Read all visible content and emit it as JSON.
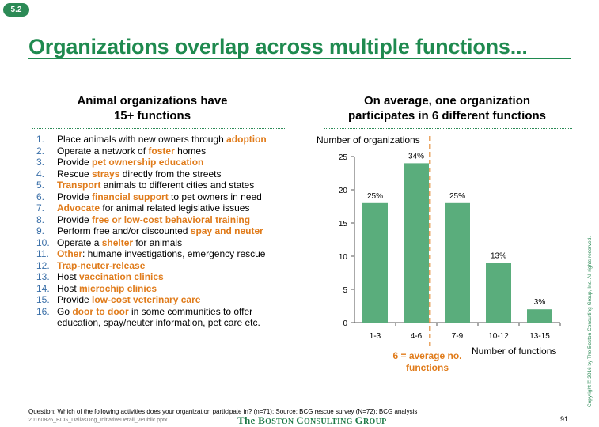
{
  "tracker": "5.2",
  "title": "Organizations overlap across multiple functions...",
  "left": {
    "heading_line1": "Animal organizations have",
    "heading_line2": "15+ functions",
    "items": [
      {
        "num": "1.",
        "parts": [
          {
            "t": "Place animals with new owners through "
          },
          {
            "t": "adoption",
            "hl": true
          }
        ]
      },
      {
        "num": "2.",
        "parts": [
          {
            "t": "Operate a network of "
          },
          {
            "t": "foster",
            "hl": true
          },
          {
            "t": " homes"
          }
        ]
      },
      {
        "num": "3.",
        "parts": [
          {
            "t": "Provide "
          },
          {
            "t": "pet ownership education",
            "hl": true
          }
        ]
      },
      {
        "num": "4.",
        "parts": [
          {
            "t": "Rescue "
          },
          {
            "t": "strays",
            "hl": true
          },
          {
            "t": " directly from the streets"
          }
        ]
      },
      {
        "num": "5.",
        "parts": [
          {
            "t": "Transport",
            "hl": true
          },
          {
            "t": " animals to different cities and states"
          }
        ]
      },
      {
        "num": "6.",
        "parts": [
          {
            "t": "Provide "
          },
          {
            "t": "financial support",
            "hl": true
          },
          {
            "t": " to pet owners in need"
          }
        ]
      },
      {
        "num": "7.",
        "parts": [
          {
            "t": "Advocate",
            "hl": true
          },
          {
            "t": " for animal related legislative issues"
          }
        ]
      },
      {
        "num": "8.",
        "parts": [
          {
            "t": "Provide "
          },
          {
            "t": "free or low-cost behavioral training",
            "hl": true
          }
        ]
      },
      {
        "num": "9.",
        "parts": [
          {
            "t": "Perform free and/or discounted "
          },
          {
            "t": "spay and neuter",
            "hl": true
          }
        ]
      },
      {
        "num": "10.",
        "parts": [
          {
            "t": "Operate a "
          },
          {
            "t": "shelter",
            "hl": true
          },
          {
            "t": " for animals"
          }
        ]
      },
      {
        "num": "11.",
        "parts": [
          {
            "t": "Other",
            "hl": true
          },
          {
            "t": ": humane investigations, emergency rescue"
          }
        ]
      },
      {
        "num": "12.",
        "parts": [
          {
            "t": "Trap-neuter-release",
            "hl": true
          }
        ]
      },
      {
        "num": "13.",
        "parts": [
          {
            "t": "Host "
          },
          {
            "t": "vaccination clinics",
            "hl": true
          }
        ]
      },
      {
        "num": "14.",
        "parts": [
          {
            "t": "Host "
          },
          {
            "t": "microchip clinics",
            "hl": true
          }
        ]
      },
      {
        "num": "15.",
        "parts": [
          {
            "t": "Provide "
          },
          {
            "t": "low-cost veterinary care",
            "hl": true
          }
        ]
      },
      {
        "num": "16.",
        "parts": [
          {
            "t": "Go "
          },
          {
            "t": "door to door",
            "hl": true
          },
          {
            "t": " in some communities to offer education, spay/neuter information, pet care etc."
          }
        ]
      }
    ]
  },
  "right": {
    "heading_line1": "On average, one organization",
    "heading_line2": "participates in 6 different functions"
  },
  "chart_data": {
    "type": "bar",
    "categories": [
      "1-3",
      "4-6",
      "7-9",
      "10-12",
      "13-15"
    ],
    "values": [
      18,
      24,
      18,
      9,
      2
    ],
    "data_labels": [
      "25%",
      "34%",
      "25%",
      "13%",
      "3%"
    ],
    "ylabel": "Number of organizations",
    "xlabel": "Number of functions",
    "ylim": [
      0,
      25
    ],
    "yticks": [
      0,
      5,
      10,
      15,
      20,
      25
    ],
    "grid": false,
    "bar_color": "#5aad7c",
    "annotation": {
      "x_value": 6,
      "line_color": "#e07b1a",
      "label_line1": "6 = average no.",
      "label_line2": "functions"
    }
  },
  "footer": {
    "footnote": "Question: Which of the following activities does your organization participate in? (n=71); Source: BCG rescue survey (N=72); BCG analysis",
    "filename": "20160826_BCG_DallasDog_InitiativeDetail_vPublic.pptx",
    "logo_the": "The ",
    "logo_b": "B",
    "logo_oston": "OSTON ",
    "logo_c": "C",
    "logo_onsulting": "ONSULTING ",
    "logo_g": "G",
    "logo_roup": "ROUP",
    "page_number": "91",
    "copyright": "Copyright © 2016 by The Boston Consulting Group, Inc. All rights reserved."
  },
  "colors": {
    "brand_green": "#1f8a4f",
    "highlight_orange": "#e07b1a",
    "number_blue": "#3a6fa8"
  }
}
